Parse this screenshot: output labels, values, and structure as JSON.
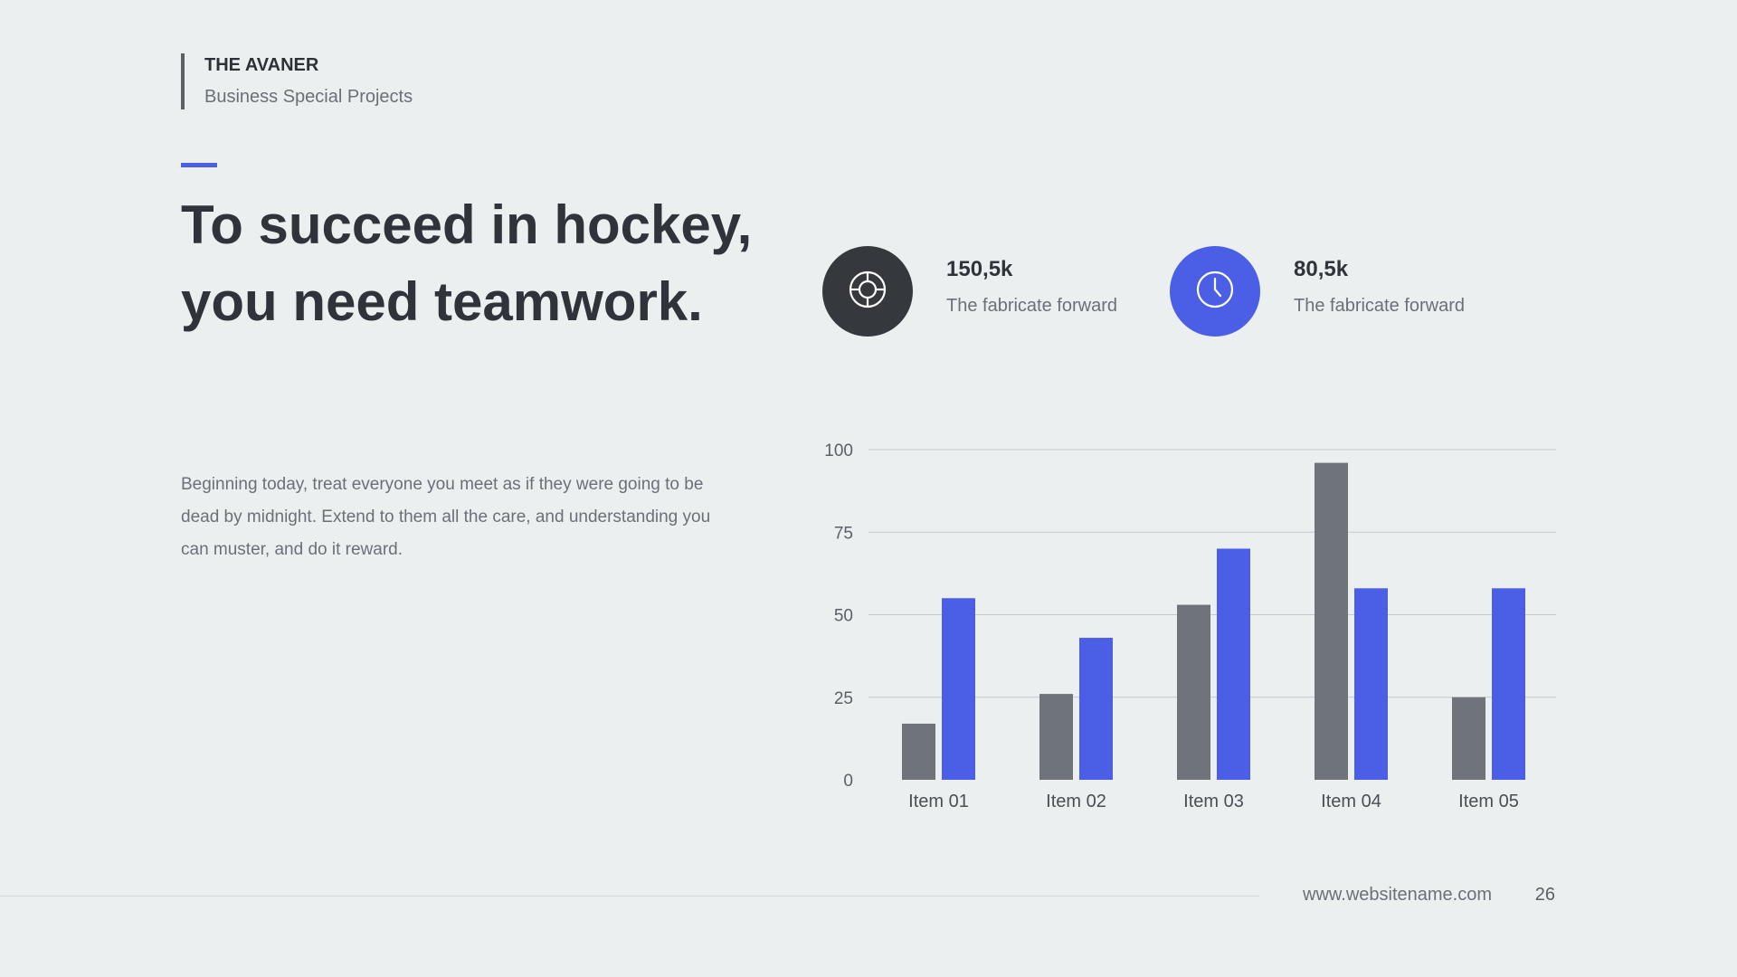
{
  "brand": {
    "title": "THE AVANER",
    "subtitle": "Business Special Projects"
  },
  "headline": "To succeed in hockey, you need teamwork.",
  "body": "Beginning today, treat everyone you meet as if they were going to be dead by midnight. Extend to them all the care, and understanding you can muster, and do it reward.",
  "stats": [
    {
      "value": "150,5k",
      "label": "The fabricate forward",
      "icon": "lifebuoy-icon",
      "color": "#35383d"
    },
    {
      "value": "80,5k",
      "label": "The fabricate forward",
      "icon": "clock-icon",
      "color": "#4a5fe6"
    }
  ],
  "chart_data": {
    "type": "bar",
    "categories": [
      "Item 01",
      "Item 02",
      "Item 03",
      "Item 04",
      "Item 05"
    ],
    "series": [
      {
        "values": [
          17,
          26,
          53,
          96,
          25
        ],
        "color": "#6f747b"
      },
      {
        "values": [
          55,
          43,
          70,
          58,
          58
        ],
        "color": "#4a5fe6"
      }
    ],
    "yticks": [
      "0",
      "25",
      "50",
      "75",
      "100"
    ],
    "ylim": [
      0,
      100
    ],
    "grid": true,
    "legend": "none"
  },
  "footer": {
    "url": "www.websitename.com",
    "page": "26"
  }
}
